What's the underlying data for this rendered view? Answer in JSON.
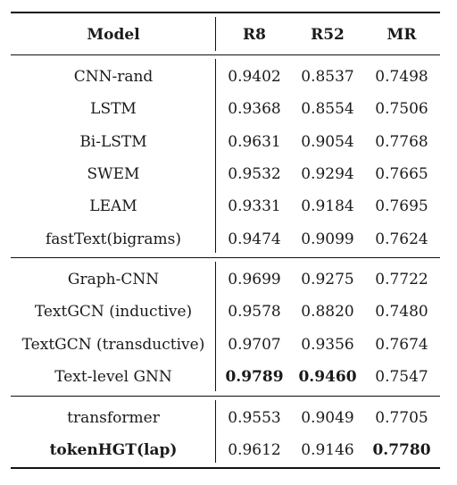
{
  "table": {
    "headers": {
      "model": "Model",
      "r8": "R8",
      "r52": "R52",
      "mr": "MR"
    },
    "groups": [
      [
        {
          "model": "CNN-rand",
          "r8": "0.9402",
          "r52": "0.8537",
          "mr": "0.7498"
        },
        {
          "model": "LSTM",
          "r8": "0.9368",
          "r52": "0.8554",
          "mr": "0.7506"
        },
        {
          "model": "Bi-LSTM",
          "r8": "0.9631",
          "r52": "0.9054",
          "mr": "0.7768"
        },
        {
          "model": "SWEM",
          "r8": "0.9532",
          "r52": "0.9294",
          "mr": "0.7665"
        },
        {
          "model": "LEAM",
          "r8": "0.9331",
          "r52": "0.9184",
          "mr": "0.7695"
        },
        {
          "model": "fastText(bigrams)",
          "r8": "0.9474",
          "r52": "0.9099",
          "mr": "0.7624"
        }
      ],
      [
        {
          "model": "Graph-CNN",
          "r8": "0.9699",
          "r52": "0.9275",
          "mr": "0.7722"
        },
        {
          "model": "TextGCN (inductive)",
          "r8": "0.9578",
          "r52": "0.8820",
          "mr": "0.7480"
        },
        {
          "model": "TextGCN (transductive)",
          "r8": "0.9707",
          "r52": "0.9356",
          "mr": "0.7674"
        },
        {
          "model": "Text-level GNN",
          "r8": "0.9789",
          "r52": "0.9460",
          "mr": "0.7547",
          "bold": [
            "r8",
            "r52"
          ]
        }
      ],
      [
        {
          "model": "transformer",
          "r8": "0.9553",
          "r52": "0.9049",
          "mr": "0.7705"
        },
        {
          "model": "tokenHGT(lap)",
          "r8": "0.9612",
          "r52": "0.9146",
          "mr": "0.7780",
          "bold": [
            "model",
            "mr"
          ]
        }
      ]
    ]
  }
}
